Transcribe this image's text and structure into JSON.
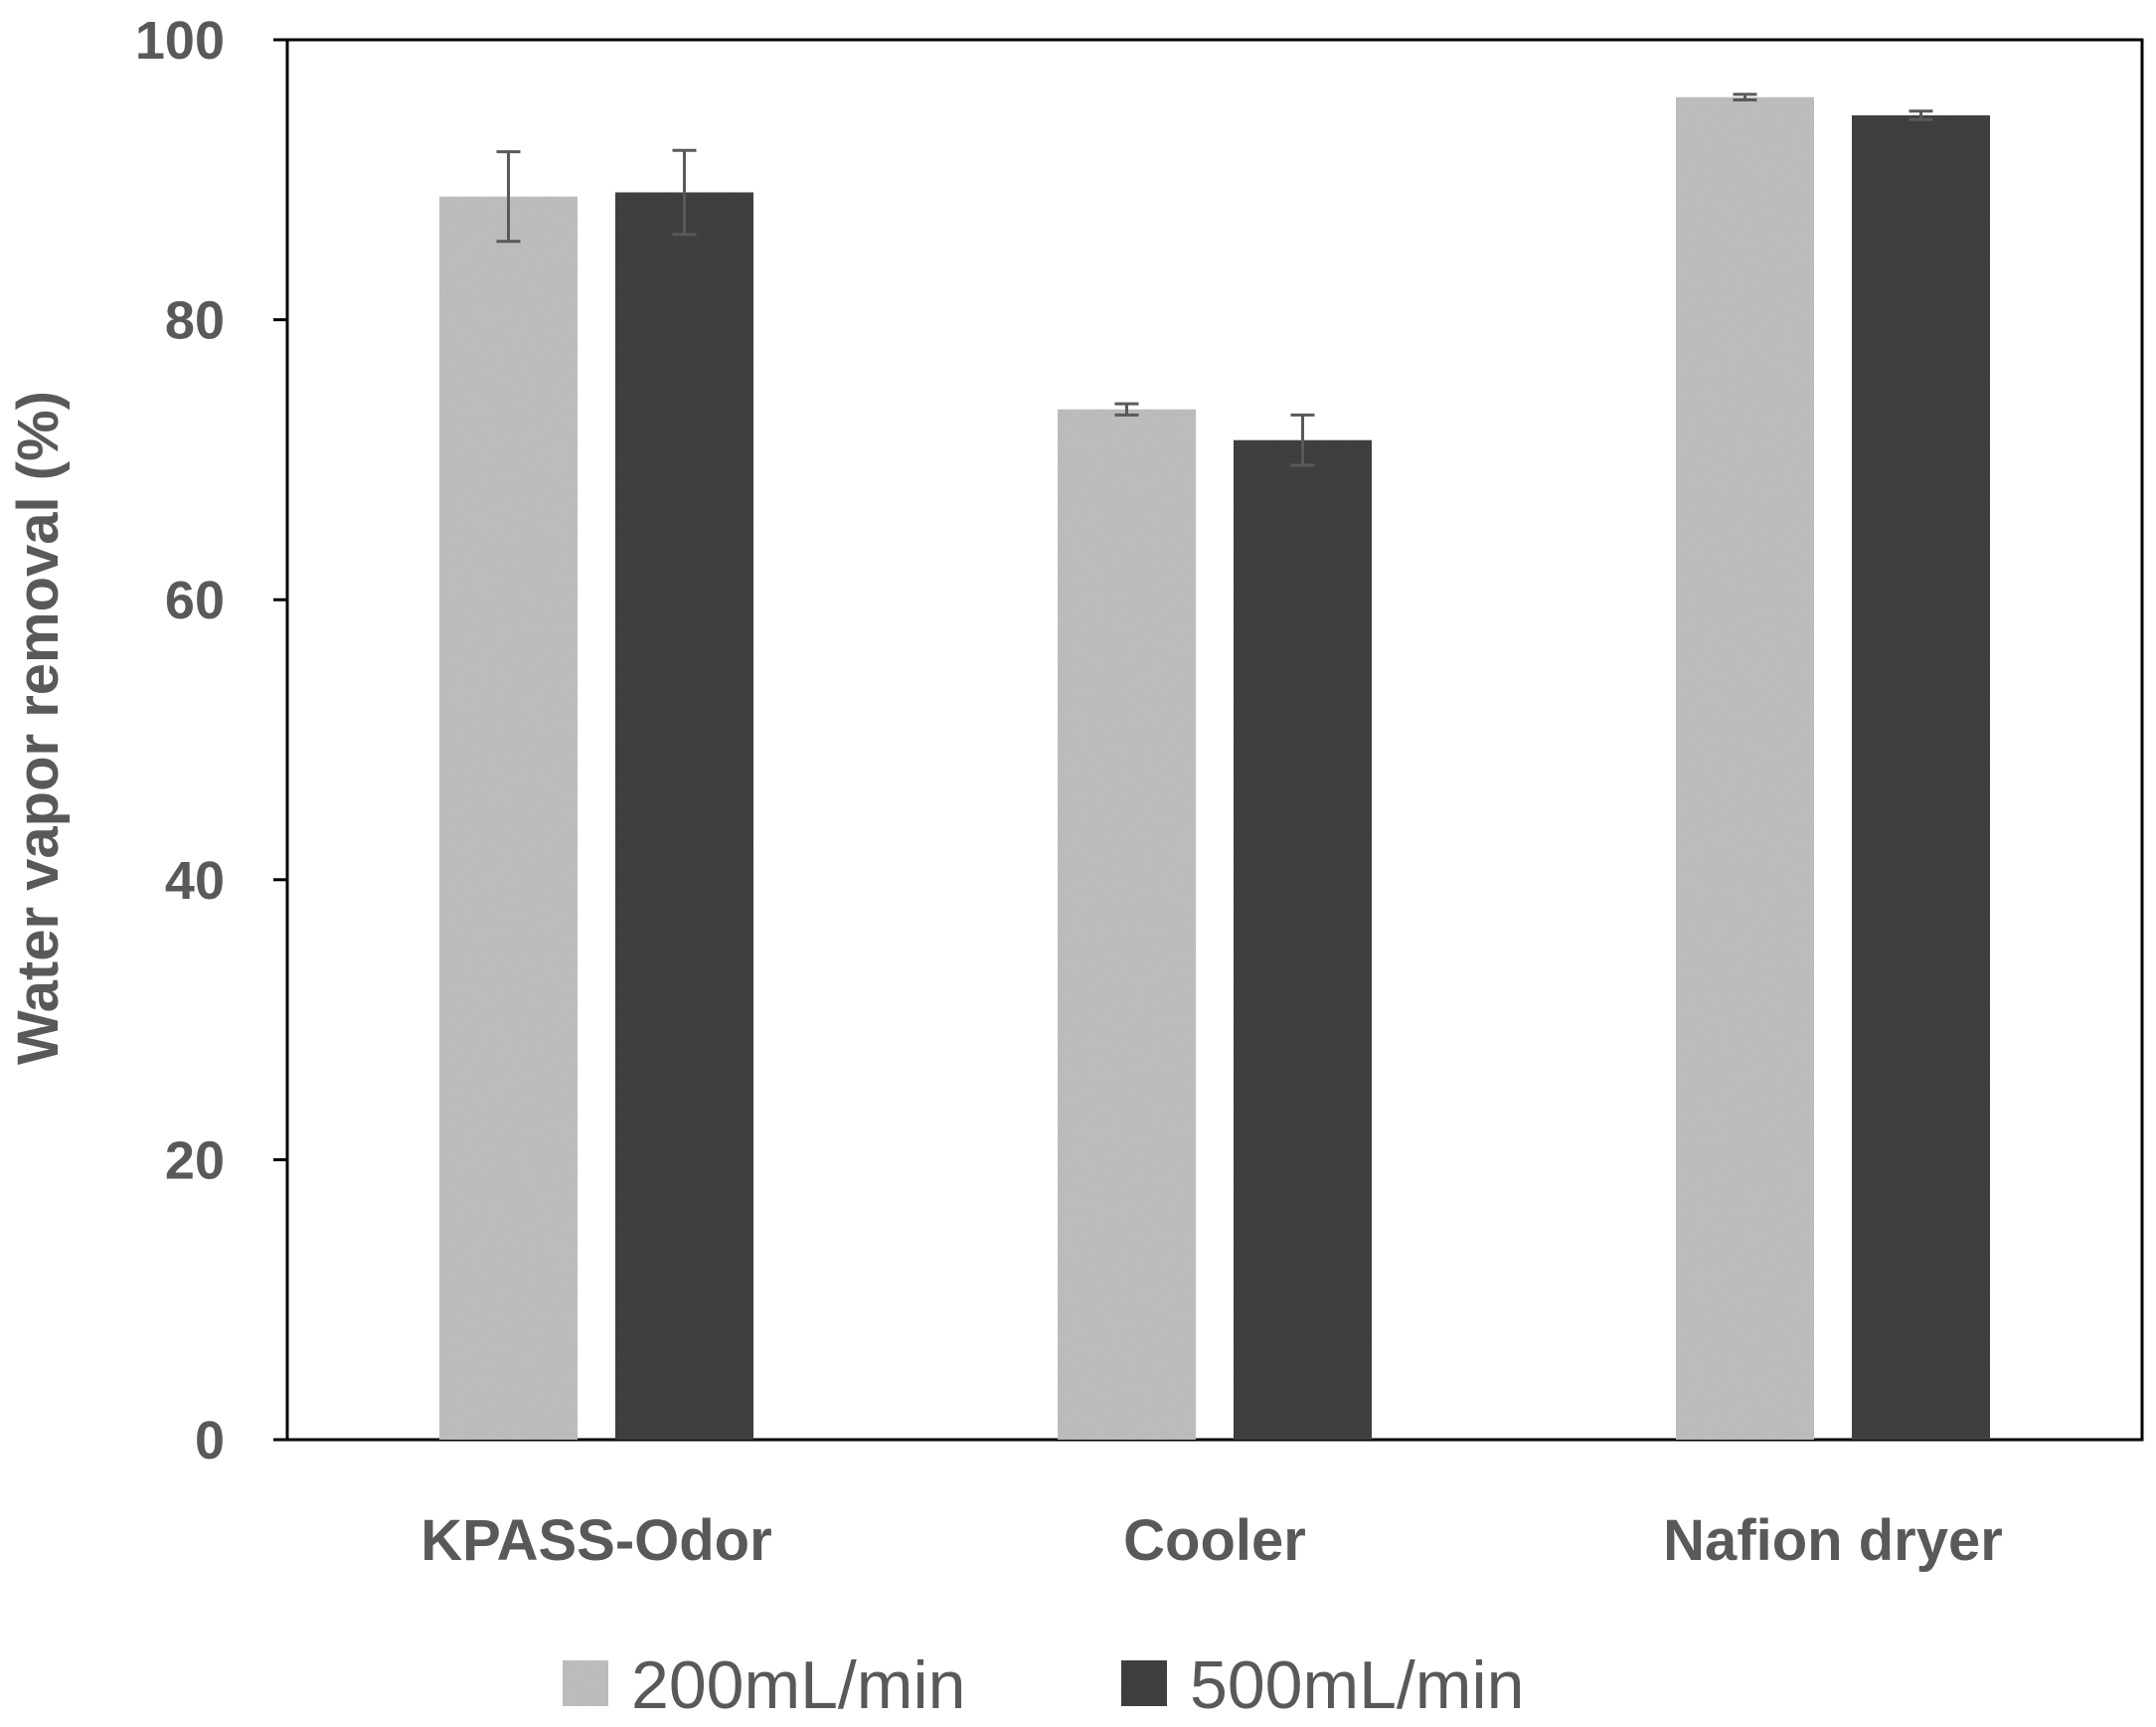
{
  "chart_data": {
    "type": "bar",
    "title": "",
    "xlabel": "",
    "ylabel": "Water vapor removal (%)",
    "ylim": [
      0,
      100
    ],
    "yticks": [
      0,
      20,
      40,
      60,
      80,
      100
    ],
    "grid": false,
    "legend_position": "bottom",
    "categories": [
      "KPASS-Odor",
      "Cooler",
      "Nafion dryer"
    ],
    "series": [
      {
        "name": "200mL/min",
        "color": "#bfbfbf",
        "values": [
          88.8,
          73.6,
          95.9
        ],
        "errors": [
          3.2,
          0.4,
          0.2
        ]
      },
      {
        "name": "500mL/min",
        "color": "#404040",
        "values": [
          89.1,
          71.4,
          94.6
        ],
        "errors": [
          3.0,
          1.8,
          0.3
        ]
      }
    ]
  }
}
